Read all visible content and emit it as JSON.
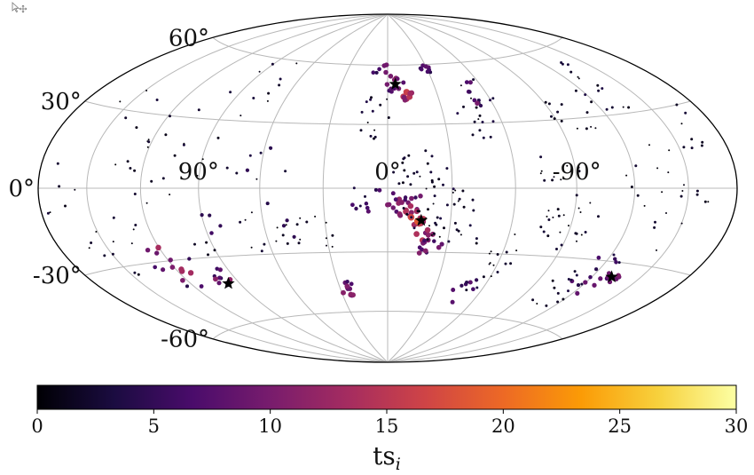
{
  "chart_data": {
    "type": "scatter",
    "projection": "hammer-aitoff",
    "grid": true,
    "lat_ticks": [
      {
        "value": 60,
        "label": "60°"
      },
      {
        "value": 30,
        "label": "30°"
      },
      {
        "value": 0,
        "label": "0°"
      },
      {
        "value": -30,
        "label": "-30°"
      },
      {
        "value": -60,
        "label": "-60°"
      }
    ],
    "lon_ticks": [
      {
        "value": 90,
        "label": "90°"
      },
      {
        "value": 0,
        "label": "0°"
      },
      {
        "value": -90,
        "label": "-90°"
      }
    ],
    "meridians": [
      -150,
      -120,
      -90,
      -60,
      -30,
      0,
      30,
      60,
      90,
      120,
      150
    ],
    "parallels": [
      -60,
      -30,
      0,
      30,
      60
    ],
    "colorbar": {
      "label": "ts_i",
      "label_main": "ts",
      "label_sub": "i",
      "min": 0,
      "max": 30,
      "ticks": [
        0,
        5,
        10,
        15,
        20,
        25,
        30
      ],
      "colormap": "inferno",
      "colors": [
        "#000004",
        "#1b0c41",
        "#4a0c6b",
        "#781c6d",
        "#a52c60",
        "#cf4446",
        "#ed6925",
        "#fb9b06",
        "#f7d13d",
        "#fcffa4"
      ]
    },
    "sources_star": [
      {
        "lon": -5,
        "lat": 50
      },
      {
        "lon": -16,
        "lat": -15
      },
      {
        "lon": -132,
        "lat": -36
      },
      {
        "lon": 97,
        "lat": -42
      }
    ],
    "clusters": [
      {
        "lon": -5,
        "lat": 50,
        "r": 5,
        "n": 12,
        "ts_min": 5,
        "ts_max": 12
      },
      {
        "lon": -12,
        "lat": 44,
        "r": 3,
        "n": 8,
        "ts_min": 10,
        "ts_max": 17
      },
      {
        "lon": -28,
        "lat": 58,
        "r": 4,
        "n": 8,
        "ts_min": 4,
        "ts_max": 9
      },
      {
        "lon": -55,
        "lat": 45,
        "r": 7,
        "n": 14,
        "ts_min": 0,
        "ts_max": 10
      },
      {
        "lon": -45,
        "lat": 30,
        "r": 10,
        "n": 12,
        "ts_min": 0,
        "ts_max": 4
      },
      {
        "lon": 10,
        "lat": 33,
        "r": 12,
        "n": 14,
        "ts_min": 0,
        "ts_max": 4
      },
      {
        "lon": 5,
        "lat": 58,
        "r": 6,
        "n": 6,
        "ts_min": 4,
        "ts_max": 10
      },
      {
        "lon": -130,
        "lat": 42,
        "r": 12,
        "n": 16,
        "ts_min": 0,
        "ts_max": 4
      },
      {
        "lon": -100,
        "lat": 32,
        "r": 10,
        "n": 12,
        "ts_min": 0,
        "ts_max": 3
      },
      {
        "lon": -8,
        "lat": -7,
        "r": 7,
        "n": 20,
        "ts_min": 5,
        "ts_max": 12
      },
      {
        "lon": -10,
        "lat": -11,
        "r": 3,
        "n": 6,
        "ts_min": 13,
        "ts_max": 19
      },
      {
        "lon": -16,
        "lat": -16,
        "r": 3,
        "n": 7,
        "ts_min": 12,
        "ts_max": 19
      },
      {
        "lon": -18,
        "lat": -22,
        "r": 4,
        "n": 8,
        "ts_min": 7,
        "ts_max": 15
      },
      {
        "lon": -22,
        "lat": -28,
        "r": 5,
        "n": 10,
        "ts_min": 5,
        "ts_max": 11
      },
      {
        "lon": -25,
        "lat": -12,
        "r": 14,
        "n": 40,
        "ts_min": 0,
        "ts_max": 4
      },
      {
        "lon": -15,
        "lat": 8,
        "r": 10,
        "n": 22,
        "ts_min": 0,
        "ts_max": 3
      },
      {
        "lon": 8,
        "lat": -5,
        "r": 8,
        "n": 10,
        "ts_min": 2,
        "ts_max": 8
      },
      {
        "lon": 25,
        "lat": -48,
        "r": 4,
        "n": 12,
        "ts_min": 5,
        "ts_max": 12
      },
      {
        "lon": 40,
        "lat": -22,
        "r": 12,
        "n": 14,
        "ts_min": 0,
        "ts_max": 3
      },
      {
        "lon": -55,
        "lat": -30,
        "r": 12,
        "n": 16,
        "ts_min": 0,
        "ts_max": 3
      },
      {
        "lon": -50,
        "lat": -50,
        "r": 8,
        "n": 10,
        "ts_min": 2,
        "ts_max": 8
      },
      {
        "lon": -90,
        "lat": -15,
        "r": 12,
        "n": 24,
        "ts_min": 0,
        "ts_max": 3
      },
      {
        "lon": -120,
        "lat": -35,
        "r": 10,
        "n": 16,
        "ts_min": 3,
        "ts_max": 9
      },
      {
        "lon": -132,
        "lat": -36,
        "r": 4,
        "n": 6,
        "ts_min": 5,
        "ts_max": 11
      },
      {
        "lon": -110,
        "lat": -45,
        "r": 10,
        "n": 12,
        "ts_min": 0,
        "ts_max": 4
      },
      {
        "lon": -80,
        "lat": 10,
        "r": 10,
        "n": 10,
        "ts_min": 0,
        "ts_max": 3
      },
      {
        "lon": -130,
        "lat": 5,
        "r": 15,
        "n": 12,
        "ts_min": 0,
        "ts_max": 3
      },
      {
        "lon": 60,
        "lat": 10,
        "r": 10,
        "n": 8,
        "ts_min": 0,
        "ts_max": 5
      },
      {
        "lon": 60,
        "lat": -18,
        "r": 12,
        "n": 12,
        "ts_min": 0,
        "ts_max": 5
      },
      {
        "lon": 97,
        "lat": -40,
        "r": 5,
        "n": 10,
        "ts_min": 4,
        "ts_max": 12
      },
      {
        "lon": 120,
        "lat": -32,
        "r": 12,
        "n": 14,
        "ts_min": 4,
        "ts_max": 14
      },
      {
        "lon": 90,
        "lat": -20,
        "r": 10,
        "n": 8,
        "ts_min": 0,
        "ts_max": 7
      },
      {
        "lon": 100,
        "lat": 15,
        "r": 20,
        "n": 14,
        "ts_min": 0,
        "ts_max": 3
      },
      {
        "lon": 120,
        "lat": -5,
        "r": 20,
        "n": 10,
        "ts_min": 0,
        "ts_max": 3
      },
      {
        "lon": 80,
        "lat": 45,
        "r": 15,
        "n": 10,
        "ts_min": 0,
        "ts_max": 3
      },
      {
        "lon": 140,
        "lat": 20,
        "r": 20,
        "n": 8,
        "ts_min": 0,
        "ts_max": 3
      },
      {
        "lon": 150,
        "lat": -25,
        "r": 10,
        "n": 8,
        "ts_min": 0,
        "ts_max": 3
      },
      {
        "lon": -160,
        "lat": 25,
        "r": 12,
        "n": 8,
        "ts_min": 0,
        "ts_max": 3
      },
      {
        "lon": -150,
        "lat": -15,
        "r": 15,
        "n": 10,
        "ts_min": 0,
        "ts_max": 3
      },
      {
        "lon": 170,
        "lat": 0,
        "r": 10,
        "n": 6,
        "ts_min": 0,
        "ts_max": 3
      }
    ]
  }
}
